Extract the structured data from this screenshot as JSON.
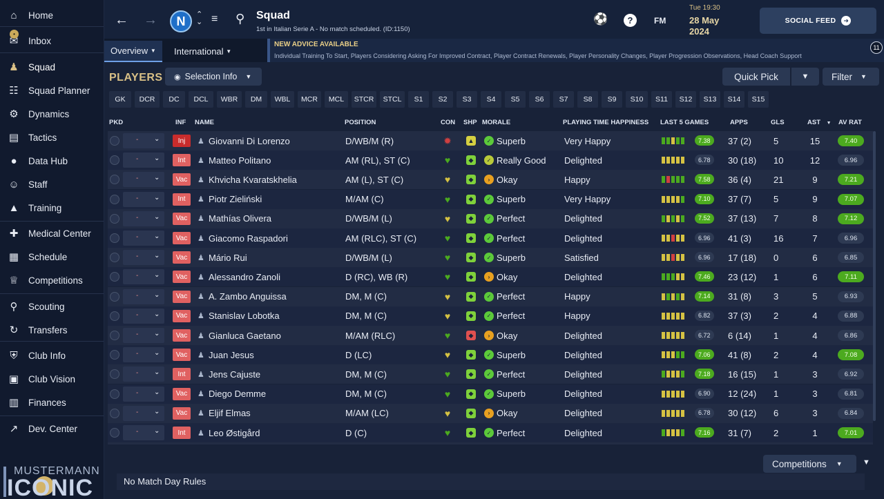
{
  "sidebar": {
    "items": [
      {
        "label": "Home",
        "icon": "home-icon"
      },
      {
        "label": "Inbox",
        "icon": "inbox-icon"
      },
      {
        "label": "Squad",
        "icon": "squad-icon"
      },
      {
        "label": "Squad Planner",
        "icon": "clipboard-icon"
      },
      {
        "label": "Dynamics",
        "icon": "dynamics-icon"
      },
      {
        "label": "Tactics",
        "icon": "tactics-icon"
      },
      {
        "label": "Data Hub",
        "icon": "data-hub-icon"
      },
      {
        "label": "Staff",
        "icon": "staff-icon"
      },
      {
        "label": "Training",
        "icon": "training-icon"
      },
      {
        "label": "Medical Center",
        "icon": "medical-icon"
      },
      {
        "label": "Schedule",
        "icon": "calendar-icon"
      },
      {
        "label": "Competitions",
        "icon": "trophy-icon"
      },
      {
        "label": "Scouting",
        "icon": "magnifier-icon"
      },
      {
        "label": "Transfers",
        "icon": "transfer-icon"
      },
      {
        "label": "Club Info",
        "icon": "shield-icon"
      },
      {
        "label": "Club Vision",
        "icon": "briefcase-icon"
      },
      {
        "label": "Finances",
        "icon": "money-icon"
      },
      {
        "label": "Dev. Center",
        "icon": "trend-icon"
      }
    ],
    "brand_top": "MUSTERMANN",
    "brand_bottom": "ICONIC"
  },
  "header": {
    "title": "Squad",
    "subtitle": "1st in Italian Serie A - No match scheduled. (ID:1150)",
    "time": "Tue 19:30",
    "date_line1": "28 May",
    "date_line2": "2024",
    "fm_label": "FM",
    "social_label": "SOCIAL FEED"
  },
  "subnav": {
    "tabs": [
      "Overview",
      "International"
    ],
    "advice_title": "NEW ADVICE AVAILABLE",
    "advice_body": "Individual Training To Start, Players Considering Asking For Improved Contract, Player Contract Renewals, Player Personality Changes, Player Progression Observations, Head Coach Support",
    "advice_count": "11"
  },
  "main": {
    "players_title": "PLAYERS",
    "selection_info": "Selection Info",
    "quick_pick": "Quick Pick",
    "filter": "Filter",
    "competitions": "Competitions",
    "footer": "No Match Day Rules",
    "positions": [
      "GK",
      "DCR",
      "DC",
      "DCL",
      "WBR",
      "DM",
      "WBL",
      "MCR",
      "MCL",
      "STCR",
      "STCL",
      "S1",
      "S2",
      "S3",
      "S4",
      "S5",
      "S6",
      "S7",
      "S8",
      "S9",
      "S10",
      "S11",
      "S12",
      "S13",
      "S14",
      "S15"
    ],
    "columns": {
      "pkd": "PKD",
      "inf": "INF",
      "name": "NAME",
      "position": "POSITION",
      "con": "CON",
      "shp": "SHP",
      "morale": "MORALE",
      "happiness": "PLAYING TIME HAPPINESS",
      "last5": "LAST 5 GAMES",
      "apps": "APPS",
      "gls": "GLS",
      "ast": "AST",
      "avrat": "AV RAT"
    },
    "colors": {
      "green": "#4caa1f",
      "yellow": "#d5c243",
      "red": "#d04040",
      "orange": "#e8a020"
    },
    "players": [
      {
        "inf": "Inj",
        "name": "Giovanni Di Lorenzo",
        "position": "D/WB/M (R)",
        "con": "red",
        "shp": "yellow",
        "morale": "Superb",
        "happiness": "Very Happy",
        "form": [
          "g",
          "g",
          "y",
          "g",
          "g"
        ],
        "form_rating": "7.38",
        "form_hi": true,
        "apps": "37 (2)",
        "gls": "5",
        "ast": "15",
        "avrat": "7.40",
        "avrat_hi": true
      },
      {
        "inf": "Int",
        "name": "Matteo Politano",
        "position": "AM (RL), ST (C)",
        "con": "green",
        "shp": "green",
        "morale": "Really Good",
        "happiness": "Delighted",
        "form": [
          "y",
          "y",
          "y",
          "y",
          "y"
        ],
        "form_rating": "6.78",
        "form_hi": false,
        "apps": "30 (18)",
        "gls": "10",
        "ast": "12",
        "avrat": "6.96",
        "avrat_hi": false
      },
      {
        "inf": "Vac",
        "name": "Khvicha Kvaratskhelia",
        "position": "AM (L), ST (C)",
        "con": "yellow",
        "shp": "green",
        "morale": "Okay",
        "happiness": "Happy",
        "form": [
          "g",
          "r",
          "g",
          "g",
          "g"
        ],
        "form_rating": "7.58",
        "form_hi": true,
        "apps": "36 (4)",
        "gls": "21",
        "ast": "9",
        "avrat": "7.21",
        "avrat_hi": true
      },
      {
        "inf": "Int",
        "name": "Piotr Zieliński",
        "position": "M/AM (C)",
        "con": "green",
        "shp": "green",
        "morale": "Superb",
        "happiness": "Very Happy",
        "form": [
          "y",
          "y",
          "y",
          "y",
          "g"
        ],
        "form_rating": "7.10",
        "form_hi": true,
        "apps": "37 (7)",
        "gls": "5",
        "ast": "9",
        "avrat": "7.07",
        "avrat_hi": true
      },
      {
        "inf": "Vac",
        "name": "Mathías Olivera",
        "position": "D/WB/M (L)",
        "con": "yellow",
        "shp": "green",
        "morale": "Perfect",
        "happiness": "Delighted",
        "form": [
          "g",
          "y",
          "g",
          "y",
          "g"
        ],
        "form_rating": "7.52",
        "form_hi": true,
        "apps": "37 (13)",
        "gls": "7",
        "ast": "8",
        "avrat": "7.12",
        "avrat_hi": true
      },
      {
        "inf": "Vac",
        "name": "Giacomo Raspadori",
        "position": "AM (RLC), ST (C)",
        "con": "green",
        "shp": "green",
        "morale": "Perfect",
        "happiness": "Delighted",
        "form": [
          "y",
          "y",
          "r",
          "y",
          "y"
        ],
        "form_rating": "6.96",
        "form_hi": false,
        "apps": "41 (3)",
        "gls": "16",
        "ast": "7",
        "avrat": "6.96",
        "avrat_hi": false
      },
      {
        "inf": "Vac",
        "name": "Mário Rui",
        "position": "D/WB/M (L)",
        "con": "green",
        "shp": "green",
        "morale": "Superb",
        "happiness": "Satisfied",
        "form": [
          "y",
          "y",
          "r",
          "y",
          "y"
        ],
        "form_rating": "6.96",
        "form_hi": false,
        "apps": "17 (18)",
        "gls": "0",
        "ast": "6",
        "avrat": "6.85",
        "avrat_hi": false
      },
      {
        "inf": "Vac",
        "name": "Alessandro Zanoli",
        "position": "D (RC), WB (R)",
        "con": "green",
        "shp": "green",
        "morale": "Okay",
        "happiness": "Delighted",
        "form": [
          "g",
          "g",
          "g",
          "y",
          "y"
        ],
        "form_rating": "7.46",
        "form_hi": true,
        "apps": "23 (12)",
        "gls": "1",
        "ast": "6",
        "avrat": "7.11",
        "avrat_hi": true
      },
      {
        "inf": "Vac",
        "name": "A. Zambo Anguissa",
        "position": "DM, M (C)",
        "con": "yellow",
        "shp": "green",
        "morale": "Perfect",
        "happiness": "Happy",
        "form": [
          "y",
          "g",
          "y",
          "g",
          "y"
        ],
        "form_rating": "7.14",
        "form_hi": true,
        "apps": "31 (8)",
        "gls": "3",
        "ast": "5",
        "avrat": "6.93",
        "avrat_hi": false
      },
      {
        "inf": "Vac",
        "name": "Stanislav Lobotka",
        "position": "DM, M (C)",
        "con": "yellow",
        "shp": "green",
        "morale": "Perfect",
        "happiness": "Happy",
        "form": [
          "y",
          "y",
          "y",
          "y",
          "y"
        ],
        "form_rating": "6.82",
        "form_hi": false,
        "apps": "37 (3)",
        "gls": "2",
        "ast": "4",
        "avrat": "6.88",
        "avrat_hi": false
      },
      {
        "inf": "Vac",
        "name": "Gianluca Gaetano",
        "position": "M/AM (RLC)",
        "con": "green",
        "shp": "red",
        "morale": "Okay",
        "happiness": "Delighted",
        "form": [
          "y",
          "y",
          "y",
          "y",
          "y"
        ],
        "form_rating": "6.72",
        "form_hi": false,
        "apps": "6 (14)",
        "gls": "1",
        "ast": "4",
        "avrat": "6.86",
        "avrat_hi": false
      },
      {
        "inf": "Vac",
        "name": "Juan Jesus",
        "position": "D (LC)",
        "con": "yellow",
        "shp": "green",
        "morale": "Superb",
        "happiness": "Delighted",
        "form": [
          "y",
          "y",
          "y",
          "g",
          "g"
        ],
        "form_rating": "7.06",
        "form_hi": true,
        "apps": "41 (8)",
        "gls": "2",
        "ast": "4",
        "avrat": "7.08",
        "avrat_hi": true
      },
      {
        "inf": "Int",
        "name": "Jens Cajuste",
        "position": "DM, M (C)",
        "con": "green",
        "shp": "green",
        "morale": "Perfect",
        "happiness": "Delighted",
        "form": [
          "g",
          "y",
          "y",
          "y",
          "g"
        ],
        "form_rating": "7.18",
        "form_hi": true,
        "apps": "16 (15)",
        "gls": "1",
        "ast": "3",
        "avrat": "6.92",
        "avrat_hi": false
      },
      {
        "inf": "Vac",
        "name": "Diego Demme",
        "position": "DM, M (C)",
        "con": "green",
        "shp": "green",
        "morale": "Superb",
        "happiness": "Delighted",
        "form": [
          "y",
          "y",
          "y",
          "y",
          "y"
        ],
        "form_rating": "6.90",
        "form_hi": false,
        "apps": "12 (24)",
        "gls": "1",
        "ast": "3",
        "avrat": "6.81",
        "avrat_hi": false
      },
      {
        "inf": "Vac",
        "name": "Eljif Elmas",
        "position": "M/AM (LC)",
        "con": "yellow",
        "shp": "green",
        "morale": "Okay",
        "happiness": "Delighted",
        "form": [
          "y",
          "y",
          "y",
          "y",
          "y"
        ],
        "form_rating": "6.78",
        "form_hi": false,
        "apps": "30 (12)",
        "gls": "6",
        "ast": "3",
        "avrat": "6.84",
        "avrat_hi": false
      },
      {
        "inf": "Int",
        "name": "Leo Østigård",
        "position": "D (C)",
        "con": "green",
        "shp": "green",
        "morale": "Perfect",
        "happiness": "Delighted",
        "form": [
          "g",
          "y",
          "y",
          "y",
          "g"
        ],
        "form_rating": "7.16",
        "form_hi": true,
        "apps": "31 (7)",
        "gls": "2",
        "ast": "1",
        "avrat": "7.01",
        "avrat_hi": true
      }
    ]
  }
}
